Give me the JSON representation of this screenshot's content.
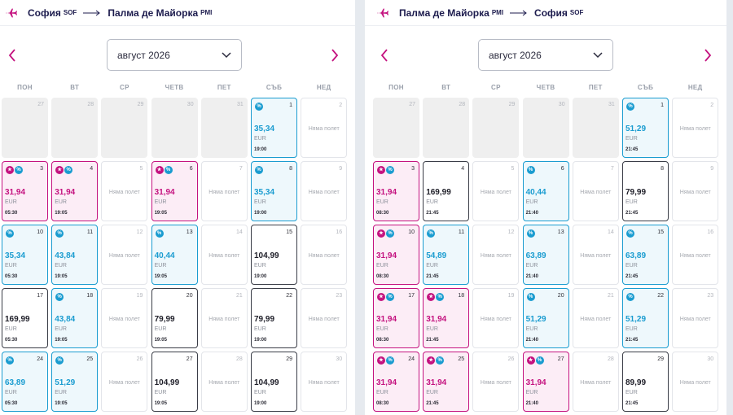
{
  "colors": {
    "pink": "#c4127f",
    "blue": "#1a9cd0",
    "navy": "#1c1b4d"
  },
  "weekdays": [
    "ПОН",
    "ВТ",
    "СР",
    "ЧЕТВ",
    "ПЕТ",
    "СЪБ",
    "НЕД"
  ],
  "no_flights_label": "Няма полет",
  "currency": "EUR",
  "panels": [
    {
      "route": {
        "from_city": "София",
        "from_code": "SOF",
        "to_city": "Палма де Майорка",
        "to_code": "PMI"
      },
      "month_label": "август 2026",
      "days": [
        {
          "day": "27",
          "type": "empty"
        },
        {
          "day": "28",
          "type": "empty"
        },
        {
          "day": "29",
          "type": "empty"
        },
        {
          "day": "30",
          "type": "empty"
        },
        {
          "day": "31",
          "type": "empty"
        },
        {
          "day": "1",
          "type": "blue",
          "price": "35,34",
          "time": "19:00",
          "badges": [
            "pct"
          ]
        },
        {
          "day": "2",
          "type": "nf"
        },
        {
          "day": "3",
          "type": "pink",
          "price": "31,94",
          "time": "05:30",
          "badges": [
            "star",
            "pct"
          ]
        },
        {
          "day": "4",
          "type": "pink",
          "price": "31,94",
          "time": "19:05",
          "badges": [
            "star",
            "pct"
          ]
        },
        {
          "day": "5",
          "type": "nf"
        },
        {
          "day": "6",
          "type": "pink",
          "price": "31,94",
          "time": "19:05",
          "badges": [
            "star",
            "pct"
          ]
        },
        {
          "day": "7",
          "type": "nf"
        },
        {
          "day": "8",
          "type": "blue",
          "price": "35,34",
          "time": "19:00",
          "badges": [
            "pct"
          ]
        },
        {
          "day": "9",
          "type": "nf"
        },
        {
          "day": "10",
          "type": "blue",
          "price": "35,34",
          "time": "05:30",
          "badges": [
            "pct"
          ]
        },
        {
          "day": "11",
          "type": "blue",
          "price": "43,84",
          "time": "19:05",
          "badges": [
            "pct"
          ]
        },
        {
          "day": "12",
          "type": "nf"
        },
        {
          "day": "13",
          "type": "blue",
          "price": "40,44",
          "time": "19:05",
          "badges": [
            "pct"
          ]
        },
        {
          "day": "14",
          "type": "nf"
        },
        {
          "day": "15",
          "type": "reg",
          "price": "104,99",
          "time": "19:00",
          "badges": []
        },
        {
          "day": "16",
          "type": "nf"
        },
        {
          "day": "17",
          "type": "reg",
          "price": "169,99",
          "time": "05:30",
          "badges": []
        },
        {
          "day": "18",
          "type": "blue",
          "price": "43,84",
          "time": "19:05",
          "badges": [
            "pct"
          ]
        },
        {
          "day": "19",
          "type": "nf"
        },
        {
          "day": "20",
          "type": "reg",
          "price": "79,99",
          "time": "19:05",
          "badges": []
        },
        {
          "day": "21",
          "type": "nf"
        },
        {
          "day": "22",
          "type": "reg",
          "price": "79,99",
          "time": "19:00",
          "badges": []
        },
        {
          "day": "23",
          "type": "nf"
        },
        {
          "day": "24",
          "type": "blue",
          "price": "63,89",
          "time": "05:30",
          "badges": [
            "pct"
          ]
        },
        {
          "day": "25",
          "type": "blue",
          "price": "51,29",
          "time": "19:05",
          "badges": [
            "pct"
          ]
        },
        {
          "day": "26",
          "type": "nf"
        },
        {
          "day": "27",
          "type": "reg",
          "price": "104,99",
          "time": "19:05",
          "badges": []
        },
        {
          "day": "28",
          "type": "nf"
        },
        {
          "day": "29",
          "type": "reg",
          "price": "104,99",
          "time": "19:00",
          "badges": []
        },
        {
          "day": "30",
          "type": "nf"
        }
      ]
    },
    {
      "route": {
        "from_city": "Палма де Майорка",
        "from_code": "PMI",
        "to_city": "София",
        "to_code": "SOF"
      },
      "month_label": "август 2026",
      "days": [
        {
          "day": "27",
          "type": "empty"
        },
        {
          "day": "28",
          "type": "empty"
        },
        {
          "day": "29",
          "type": "empty"
        },
        {
          "day": "30",
          "type": "empty"
        },
        {
          "day": "31",
          "type": "empty"
        },
        {
          "day": "1",
          "type": "blue",
          "price": "51,29",
          "time": "21:45",
          "badges": [
            "pct"
          ]
        },
        {
          "day": "2",
          "type": "nf"
        },
        {
          "day": "3",
          "type": "pink",
          "price": "31,94",
          "time": "08:30",
          "badges": [
            "star",
            "pct"
          ]
        },
        {
          "day": "4",
          "type": "reg",
          "price": "169,99",
          "time": "21:45",
          "badges": []
        },
        {
          "day": "5",
          "type": "nf"
        },
        {
          "day": "6",
          "type": "blue",
          "price": "40,44",
          "time": "21:40",
          "badges": [
            "pct"
          ]
        },
        {
          "day": "7",
          "type": "nf"
        },
        {
          "day": "8",
          "type": "reg",
          "price": "79,99",
          "time": "21:45",
          "badges": []
        },
        {
          "day": "9",
          "type": "nf"
        },
        {
          "day": "10",
          "type": "pink",
          "price": "31,94",
          "time": "08:30",
          "badges": [
            "star",
            "pct"
          ]
        },
        {
          "day": "11",
          "type": "blue",
          "price": "54,89",
          "time": "21:45",
          "badges": [
            "pct"
          ]
        },
        {
          "day": "12",
          "type": "nf"
        },
        {
          "day": "13",
          "type": "blue",
          "price": "63,89",
          "time": "21:40",
          "badges": [
            "pct"
          ]
        },
        {
          "day": "14",
          "type": "nf"
        },
        {
          "day": "15",
          "type": "blue",
          "price": "63,89",
          "time": "21:45",
          "badges": [
            "pct"
          ]
        },
        {
          "day": "16",
          "type": "nf"
        },
        {
          "day": "17",
          "type": "pink",
          "price": "31,94",
          "time": "08:30",
          "badges": [
            "star",
            "pct"
          ]
        },
        {
          "day": "18",
          "type": "pink",
          "price": "31,94",
          "time": "21:45",
          "badges": [
            "star",
            "pct"
          ]
        },
        {
          "day": "19",
          "type": "nf"
        },
        {
          "day": "20",
          "type": "blue",
          "price": "51,29",
          "time": "21:40",
          "badges": [
            "pct"
          ]
        },
        {
          "day": "21",
          "type": "nf"
        },
        {
          "day": "22",
          "type": "blue",
          "price": "51,29",
          "time": "21:45",
          "badges": [
            "pct"
          ]
        },
        {
          "day": "23",
          "type": "nf"
        },
        {
          "day": "24",
          "type": "pink",
          "price": "31,94",
          "time": "08:30",
          "badges": [
            "star",
            "pct"
          ]
        },
        {
          "day": "25",
          "type": "pink",
          "price": "31,94",
          "time": "21:45",
          "badges": [
            "star",
            "pct"
          ]
        },
        {
          "day": "26",
          "type": "nf"
        },
        {
          "day": "27",
          "type": "pink",
          "price": "31,94",
          "time": "21:40",
          "badges": [
            "star",
            "pct"
          ]
        },
        {
          "day": "28",
          "type": "nf"
        },
        {
          "day": "29",
          "type": "reg",
          "price": "89,99",
          "time": "21:45",
          "badges": []
        },
        {
          "day": "30",
          "type": "nf"
        }
      ]
    }
  ]
}
